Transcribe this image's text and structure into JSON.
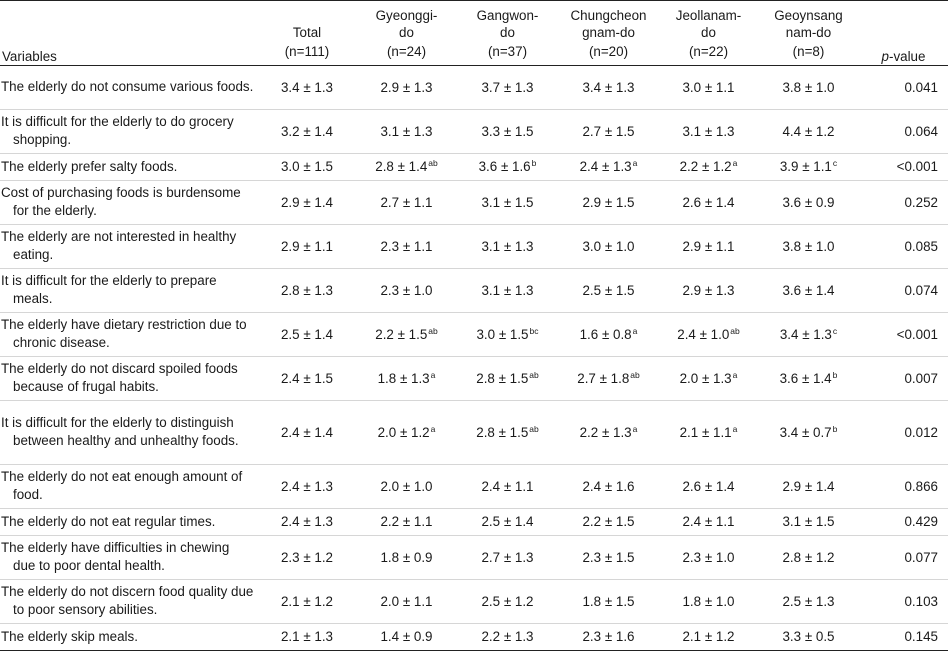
{
  "headers": {
    "variables": "Variables",
    "total": "Total",
    "total_n": "(n=111)",
    "gyeonggi_1": "Gyeonggi-",
    "gyeonggi_2": "do",
    "gyeonggi_n": "(n=24)",
    "gangwon_1": "Gangwon-",
    "gangwon_2": "do",
    "gangwon_n": "(n=37)",
    "chungcheong_1": "Chungcheon",
    "chungcheong_2": "gnam-do",
    "chungcheong_n": "(n=20)",
    "jeollanam_1": "Jeollanam-",
    "jeollanam_2": "do",
    "jeollanam_n": "(n=22)",
    "geoynsang_1": "Geoynsang",
    "geoynsang_2": "nam-do",
    "geoynsang_n": "(n=8)",
    "pvalue_italic": "p",
    "pvalue_rest": "-value"
  },
  "rows": [
    {
      "label": "The elderly do not consume various foods.",
      "h": 2,
      "cells": [
        [
          "3.4 ± 1.3",
          ""
        ],
        [
          "2.9 ± 1.3",
          ""
        ],
        [
          "3.7 ± 1.3",
          ""
        ],
        [
          "3.4 ± 1.3",
          ""
        ],
        [
          "3.0 ± 1.1",
          ""
        ],
        [
          "3.8 ± 1.0",
          ""
        ]
      ],
      "p": "0.041"
    },
    {
      "label": "It is difficult for the elderly to do grocery shopping.",
      "h": 2,
      "cells": [
        [
          "3.2 ± 1.4",
          ""
        ],
        [
          "3.1 ± 1.3",
          ""
        ],
        [
          "3.3 ± 1.5",
          ""
        ],
        [
          "2.7 ± 1.5",
          ""
        ],
        [
          "3.1 ± 1.3",
          ""
        ],
        [
          "4.4 ± 1.2",
          ""
        ]
      ],
      "p": "0.064"
    },
    {
      "label": "The elderly prefer salty foods.",
      "h": 1,
      "cells": [
        [
          "3.0 ± 1.5",
          ""
        ],
        [
          "2.8 ± 1.4",
          "ab"
        ],
        [
          "3.6 ± 1.6",
          "b"
        ],
        [
          "2.4 ± 1.3",
          "a"
        ],
        [
          "2.2 ± 1.2",
          "a"
        ],
        [
          "3.9 ± 1.1",
          "c"
        ]
      ],
      "p": "<0.001"
    },
    {
      "label": "Cost of purchasing foods is burdensome for the elderly.",
      "h": 2,
      "cells": [
        [
          "2.9 ± 1.4",
          ""
        ],
        [
          "2.7 ± 1.1",
          ""
        ],
        [
          "3.1 ± 1.5",
          ""
        ],
        [
          "2.9 ± 1.5",
          ""
        ],
        [
          "2.6 ± 1.4",
          ""
        ],
        [
          "3.6 ± 0.9",
          ""
        ]
      ],
      "p": "0.252"
    },
    {
      "label": "The elderly are not interested in healthy eating.",
      "h": 2,
      "cells": [
        [
          "2.9 ± 1.1",
          ""
        ],
        [
          "2.3 ± 1.1",
          ""
        ],
        [
          "3.1 ± 1.3",
          ""
        ],
        [
          "3.0 ± 1.0",
          ""
        ],
        [
          "2.9 ± 1.1",
          ""
        ],
        [
          "3.8 ± 1.0",
          ""
        ]
      ],
      "p": "0.085"
    },
    {
      "label": "It is difficult for the elderly to prepare meals.",
      "h": 2,
      "cells": [
        [
          "2.8 ± 1.3",
          ""
        ],
        [
          "2.3 ± 1.0",
          ""
        ],
        [
          "3.1 ± 1.3",
          ""
        ],
        [
          "2.5 ± 1.5",
          ""
        ],
        [
          "2.9 ± 1.3",
          ""
        ],
        [
          "3.6 ± 1.4",
          ""
        ]
      ],
      "p": "0.074"
    },
    {
      "label": "The elderly have dietary restriction due to chronic disease.",
      "h": 2,
      "cells": [
        [
          "2.5 ± 1.4",
          ""
        ],
        [
          "2.2 ± 1.5",
          "ab"
        ],
        [
          "3.0 ± 1.5",
          "bc"
        ],
        [
          "1.6 ± 0.8",
          "a"
        ],
        [
          "2.4 ± 1.0",
          "ab"
        ],
        [
          "3.4 ± 1.3",
          "c"
        ]
      ],
      "p": "<0.001"
    },
    {
      "label": "The elderly do not discard spoiled foods because of frugal habits.",
      "h": 2,
      "cells": [
        [
          "2.4 ± 1.5",
          ""
        ],
        [
          "1.8 ± 1.3",
          "a"
        ],
        [
          "2.8 ± 1.5",
          "ab"
        ],
        [
          "2.7 ± 1.8",
          "ab"
        ],
        [
          "2.0 ± 1.3",
          "a"
        ],
        [
          "3.6 ± 1.4",
          "b"
        ]
      ],
      "p": "0.007"
    },
    {
      "label": "It is difficult for the elderly to distinguish between healthy and unhealthy foods.",
      "h": 3,
      "cells": [
        [
          "2.4 ± 1.4",
          ""
        ],
        [
          "2.0 ± 1.2",
          "a"
        ],
        [
          "2.8 ± 1.5",
          "ab"
        ],
        [
          "2.2 ± 1.3",
          "a"
        ],
        [
          "2.1 ± 1.1",
          "a"
        ],
        [
          "3.4 ± 0.7",
          "b"
        ]
      ],
      "p": "0.012"
    },
    {
      "label": "The elderly do not eat enough amount of food.",
      "h": 2,
      "cells": [
        [
          "2.4 ± 1.3",
          ""
        ],
        [
          "2.0 ± 1.0",
          ""
        ],
        [
          "2.4 ± 1.1",
          ""
        ],
        [
          "2.4 ± 1.6",
          ""
        ],
        [
          "2.6 ± 1.4",
          ""
        ],
        [
          "2.9 ± 1.4",
          ""
        ]
      ],
      "p": "0.866"
    },
    {
      "label": "The elderly do not eat regular times.",
      "h": 1,
      "cells": [
        [
          "2.4 ± 1.3",
          ""
        ],
        [
          "2.2 ± 1.1",
          ""
        ],
        [
          "2.5 ± 1.4",
          ""
        ],
        [
          "2.2 ± 1.5",
          ""
        ],
        [
          "2.4 ± 1.1",
          ""
        ],
        [
          "3.1 ± 1.5",
          ""
        ]
      ],
      "p": "0.429"
    },
    {
      "label": "The elderly have difficulties in chewing due to poor dental health.",
      "h": 2,
      "cells": [
        [
          "2.3 ± 1.2",
          ""
        ],
        [
          "1.8 ± 0.9",
          ""
        ],
        [
          "2.7 ± 1.3",
          ""
        ],
        [
          "2.3 ± 1.5",
          ""
        ],
        [
          "2.3 ± 1.0",
          ""
        ],
        [
          "2.8 ± 1.2",
          ""
        ]
      ],
      "p": "0.077"
    },
    {
      "label": "The elderly do not discern food quality due to poor sensory abilities.",
      "h": 2,
      "cells": [
        [
          "2.1 ± 1.2",
          ""
        ],
        [
          "2.0 ± 1.1",
          ""
        ],
        [
          "2.5 ± 1.2",
          ""
        ],
        [
          "1.8 ± 1.5",
          ""
        ],
        [
          "1.8 ± 1.0",
          ""
        ],
        [
          "2.5 ± 1.3",
          ""
        ]
      ],
      "p": "0.103"
    },
    {
      "label": "The elderly skip meals.",
      "h": 1,
      "cells": [
        [
          "2.1 ± 1.3",
          ""
        ],
        [
          "1.4 ± 0.9",
          ""
        ],
        [
          "2.2 ± 1.3",
          ""
        ],
        [
          "2.3 ± 1.6",
          ""
        ],
        [
          "2.1 ± 1.2",
          ""
        ],
        [
          "3.3 ± 0.5",
          ""
        ]
      ],
      "p": "0.145"
    }
  ]
}
